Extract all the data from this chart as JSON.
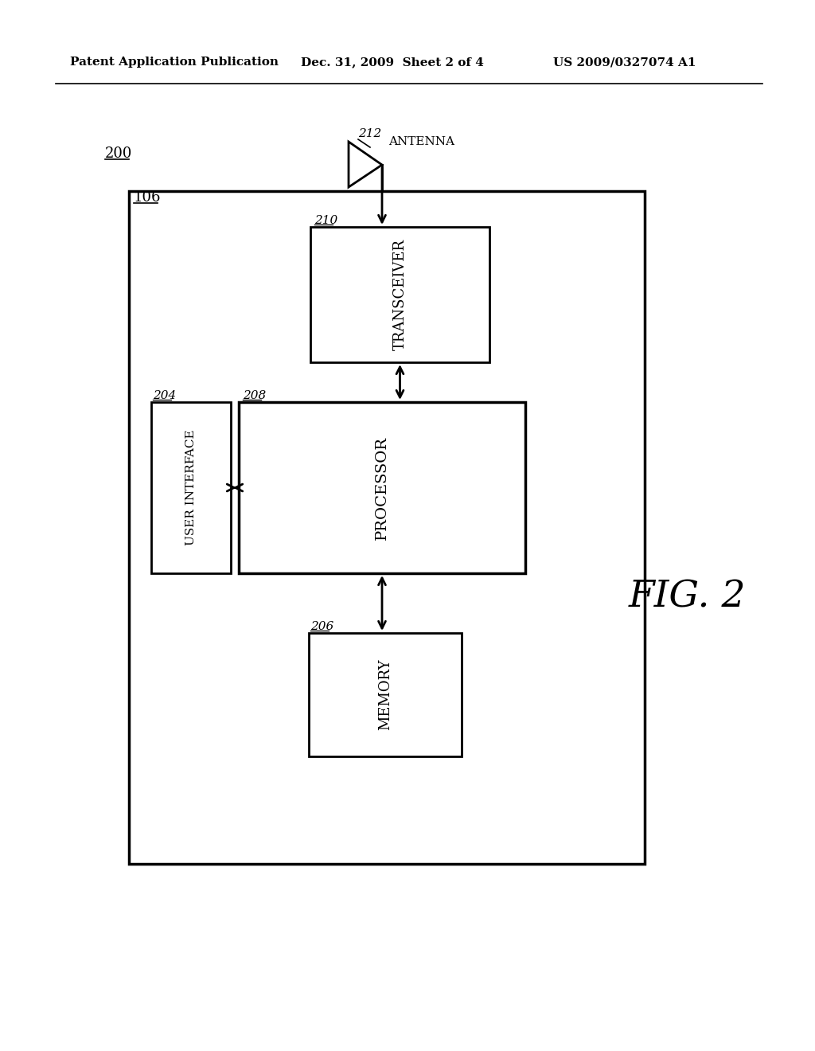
{
  "bg_color": "#ffffff",
  "header_left": "Patent Application Publication",
  "header_mid": "Dec. 31, 2009  Sheet 2 of 4",
  "header_right": "US 2009/0327074 A1",
  "fig_label": "FIG. 2",
  "label_200": "200",
  "label_106": "106",
  "label_transceiver": "TRANSCEIVER",
  "label_210": "210",
  "label_processor": "PROCESSOR",
  "label_208": "208",
  "label_ui": "USER INTERFACE",
  "label_204": "204",
  "label_memory": "MEMORY",
  "label_206": "206",
  "label_antenna": "ANTENNA",
  "label_212": "212"
}
